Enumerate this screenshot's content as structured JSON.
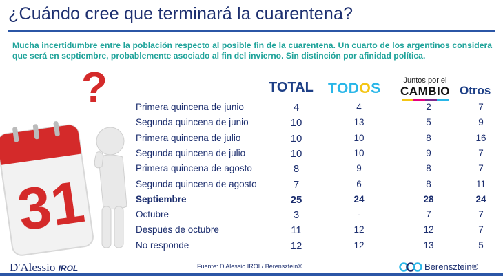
{
  "title": "¿Cuándo cree que terminará la cuarentena?",
  "subtitle": "Mucha incertidumbre entre la población respecto al posible fin de la cuarentena. Un cuarto de los argentinos considera que será en septiembre, probablemente asociado al fin del invierno. Sin distinción por afinidad política.",
  "illustration": {
    "calendar_day": "31",
    "question_mark": "?"
  },
  "colors": {
    "title": "#1d2f6f",
    "subtitle": "#1fa39a",
    "todos_blue": "#29b6e8",
    "todos_sun": "#f4c514"
  },
  "headers": {
    "total": "TOTAL",
    "todos": {
      "left": "TOD",
      "mid": "O",
      "right": "S"
    },
    "jxc_top": "Juntos por el",
    "jxc_bottom": "CAMBIO",
    "otros": "Otros"
  },
  "chart_data": {
    "type": "table",
    "title": "¿Cuándo cree que terminará la cuarentena?",
    "columns": [
      "TOTAL",
      "TODOS",
      "Juntos por el CAMBIO",
      "Otros"
    ],
    "rows": [
      {
        "label": "Primera quincena de junio",
        "total": "4",
        "todos": "4",
        "jxc": "2",
        "otros": "7",
        "bold": false
      },
      {
        "label": "Segunda quincena de junio",
        "total": "10",
        "todos": "13",
        "jxc": "5",
        "otros": "9",
        "bold": false
      },
      {
        "label": "Primera quincena de julio",
        "total": "10",
        "todos": "10",
        "jxc": "8",
        "otros": "16",
        "bold": false
      },
      {
        "label": "Segunda quincena de julio",
        "total": "10",
        "todos": "10",
        "jxc": "9",
        "otros": "7",
        "bold": false
      },
      {
        "label": "Primera quincena de agosto",
        "total": "8",
        "todos": "9",
        "jxc": "8",
        "otros": "7",
        "bold": false
      },
      {
        "label": "Segunda quincena de agosto",
        "total": "7",
        "todos": "6",
        "jxc": "8",
        "otros": "11",
        "bold": false
      },
      {
        "label": "Septiembre",
        "total": "25",
        "todos": "24",
        "jxc": "28",
        "otros": "24",
        "bold": true
      },
      {
        "label": "Octubre",
        "total": "3",
        "todos": "-",
        "jxc": "7",
        "otros": "7",
        "bold": false
      },
      {
        "label": "Después de octubre",
        "total": "11",
        "todos": "12",
        "jxc": "12",
        "otros": "7",
        "bold": false
      },
      {
        "label": "No responde",
        "total": "12",
        "todos": "12",
        "jxc": "13",
        "otros": "5",
        "bold": false
      }
    ]
  },
  "footer": {
    "logo_main": "D'Alessio",
    "logo_sub": "IROL",
    "source": "Fuente: D'Alessio IROL/ Berensztein®",
    "right_brand": "Berensztein®"
  }
}
